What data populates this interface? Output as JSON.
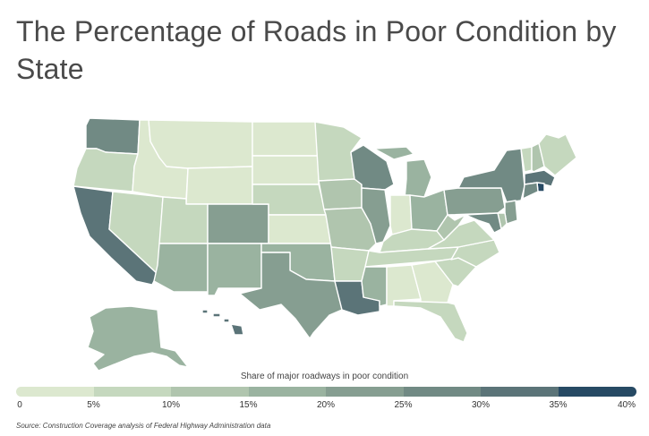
{
  "title": "The Percentage of Roads in Poor Condition by State",
  "legend": {
    "title": "Share of major roadways in poor condition",
    "ticks": [
      "0",
      "5%",
      "10%",
      "15%",
      "20%",
      "25%",
      "30%",
      "35%",
      "40%"
    ],
    "colors": [
      "#dce8cf",
      "#c5d8be",
      "#b0c5ae",
      "#9ab3a0",
      "#869e91",
      "#718a84",
      "#5b7478",
      "#274a64"
    ]
  },
  "source": "Source: Construction Coverage analysis of Federal Highway Administration data",
  "states": {
    "WA": 1,
    "OR": 1,
    "CA": 1,
    "NV": 1,
    "ID": 1,
    "MT": 1,
    "WY": 1,
    "UT": 1,
    "AZ": 1,
    "CO": 1,
    "NM": 1,
    "ND": 1,
    "SD": 1,
    "NE": 1,
    "KS": 1,
    "OK": 1,
    "TX": 1,
    "MN": 1,
    "IA": 1,
    "MO": 1,
    "AR": 1,
    "LA": 1,
    "WI": 1,
    "IL": 1,
    "MI": 1,
    "IN": 1,
    "OH": 1,
    "KY": 1,
    "TN": 1,
    "MS": 1,
    "AL": 1,
    "GA": 1,
    "FL": 1,
    "SC": 1,
    "NC": 1,
    "VA": 1,
    "WV": 1,
    "PA": 1,
    "NY": 1,
    "VT": 1,
    "NH": 1,
    "ME": 1,
    "MA": 1,
    "RI": 1,
    "CT": 1,
    "NJ": 1,
    "DE": 1,
    "MD": 1,
    "AK": 1,
    "HI": 1
  },
  "state_values": {
    "WA": 27,
    "OR": 7,
    "CA": 32,
    "NV": 8,
    "ID": 4,
    "MT": 4,
    "WY": 3,
    "UT": 8,
    "AZ": 19,
    "CO": 22,
    "NM": 19,
    "ND": 4,
    "SD": 4,
    "NE": 8,
    "KS": 3,
    "OK": 15,
    "TX": 20,
    "MN": 8,
    "IA": 10,
    "MO": 14,
    "AR": 9,
    "LA": 32,
    "WI": 26,
    "IL": 21,
    "MI": 17,
    "IN": 3,
    "OH": 16,
    "KY": 9,
    "TN": 6,
    "MS": 16,
    "AL": 4,
    "GA": 3,
    "FL": 5,
    "SC": 9,
    "NC": 8,
    "VA": 7,
    "WV": 12,
    "PA": 24,
    "NY": 25,
    "VT": 5,
    "NH": 12,
    "ME": 6,
    "MA": 32,
    "RI": 38,
    "CT": 27,
    "NJ": 22,
    "DE": 12,
    "MD": 29,
    "AK": 17,
    "HI": 34
  }
}
